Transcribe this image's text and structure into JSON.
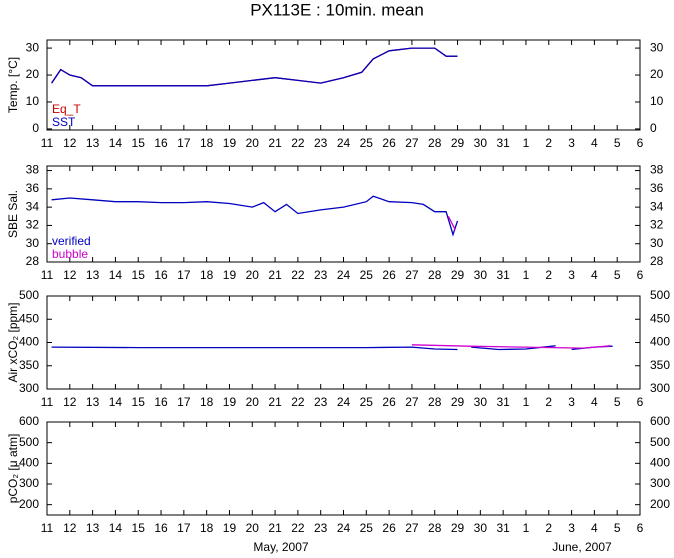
{
  "title": "PX113E : 10min. mean",
  "annotations": [
    "May, 2007",
    "June, 2007"
  ],
  "chart_data": [
    {
      "type": "line",
      "ylabel": "Temp. [°C]",
      "xlim": [
        11,
        37
      ],
      "ylim": [
        -0.4,
        33
      ],
      "xticks": [
        11,
        12,
        13,
        14,
        15,
        16,
        17,
        18,
        19,
        20,
        21,
        22,
        23,
        24,
        25,
        26,
        27,
        28,
        29,
        30,
        31,
        {
          "value": 32,
          "label": "1"
        },
        {
          "value": 33,
          "label": "2"
        },
        {
          "value": 34,
          "label": "3"
        },
        {
          "value": 35,
          "label": "4"
        },
        {
          "value": 36,
          "label": "5"
        },
        {
          "value": 37,
          "label": "6"
        }
      ],
      "yticks": [
        0,
        10,
        20,
        30
      ],
      "series": [
        {
          "name": "Eq_T",
          "color": "#cc0000",
          "x": [
            11.2,
            11.6,
            12,
            12.5,
            13,
            14,
            15,
            16,
            17,
            18,
            19,
            20,
            21,
            22,
            23,
            24,
            24.8,
            25.3,
            26,
            27,
            28,
            28.5,
            29
          ],
          "values": [
            17,
            22,
            20,
            19,
            16,
            16,
            16,
            16,
            16,
            16,
            17,
            18,
            19,
            18,
            17,
            19,
            21,
            26,
            29,
            30,
            30,
            27,
            27
          ]
        },
        {
          "name": "SST",
          "color": "#0000c0",
          "x": [
            11.2,
            11.6,
            12,
            12.5,
            13,
            14,
            15,
            16,
            17,
            18,
            19,
            20,
            21,
            22,
            23,
            24,
            24.8,
            25.3,
            26,
            27,
            28,
            28.5,
            29
          ],
          "values": [
            17,
            22,
            20,
            19,
            16,
            16,
            16,
            16,
            16,
            16,
            17,
            18,
            19,
            18,
            17,
            19,
            21,
            26,
            29,
            30,
            30,
            27,
            27
          ]
        }
      ]
    },
    {
      "type": "line",
      "ylabel": "SBE Sal.",
      "xlim": [
        11,
        37
      ],
      "ylim": [
        28,
        38.5
      ],
      "xticks": [
        11,
        12,
        13,
        14,
        15,
        16,
        17,
        18,
        19,
        20,
        21,
        22,
        23,
        24,
        25,
        26,
        27,
        28,
        29,
        30,
        31,
        {
          "value": 32,
          "label": "1"
        },
        {
          "value": 33,
          "label": "2"
        },
        {
          "value": 34,
          "label": "3"
        },
        {
          "value": 35,
          "label": "4"
        },
        {
          "value": 36,
          "label": "5"
        },
        {
          "value": 37,
          "label": "6"
        }
      ],
      "yticks": [
        28,
        30,
        32,
        34,
        36,
        38
      ],
      "series": [
        {
          "name": "verified",
          "color": "#0000c0",
          "x": [
            11.2,
            12,
            13,
            14,
            15,
            16,
            17,
            18,
            19,
            20,
            20.5,
            21,
            21.5,
            22,
            23,
            24,
            25,
            25.3,
            26,
            27,
            27.5,
            28,
            28.5,
            28.8,
            29
          ],
          "values": [
            34.8,
            35,
            34.8,
            34.6,
            34.6,
            34.5,
            34.5,
            34.6,
            34.4,
            34,
            34.5,
            33.5,
            34.3,
            33.3,
            33.7,
            34,
            34.6,
            35.2,
            34.6,
            34.5,
            34.3,
            33.5,
            33.5,
            31,
            32.5
          ]
        },
        {
          "name": "bubble",
          "color": "#d000d0",
          "x": [
            28.6,
            28.9
          ],
          "values": [
            33,
            31.5
          ]
        }
      ]
    },
    {
      "type": "line",
      "ylabel": "Air xCO₂ [ppm]",
      "xlim": [
        11,
        37
      ],
      "ylim": [
        300,
        500
      ],
      "xticks": [
        11,
        12,
        13,
        14,
        15,
        16,
        17,
        18,
        19,
        20,
        21,
        22,
        23,
        24,
        25,
        26,
        27,
        28,
        29,
        30,
        31,
        {
          "value": 32,
          "label": "1"
        },
        {
          "value": 33,
          "label": "2"
        },
        {
          "value": 34,
          "label": "3"
        },
        {
          "value": 35,
          "label": "4"
        },
        {
          "value": 36,
          "label": "5"
        },
        {
          "value": 37,
          "label": "6"
        }
      ],
      "yticks": [
        300,
        350,
        400,
        450,
        500
      ],
      "series": [
        {
          "name": "verified",
          "color": "#0000c0",
          "x": [
            11.2,
            15,
            20,
            25,
            27,
            28,
            29,
            29.3,
            29.6,
            30.8,
            32,
            33.3,
            33.6,
            34,
            35,
            35.8
          ],
          "values": [
            390,
            389,
            389,
            389,
            390,
            386,
            385,
            null,
            390,
            385,
            386,
            393,
            null,
            385,
            390,
            392
          ]
        },
        {
          "name": "bubble",
          "color": "#d000d0",
          "x": [
            27,
            29.5,
            34.5,
            35.7
          ],
          "values": [
            395,
            392,
            388,
            393
          ]
        }
      ]
    },
    {
      "type": "line",
      "ylabel": "pCO₂ [μ atm]",
      "xlim": [
        11,
        37
      ],
      "ylim": [
        150,
        600
      ],
      "xticks": [
        11,
        12,
        13,
        14,
        15,
        16,
        17,
        18,
        19,
        20,
        21,
        22,
        23,
        24,
        25,
        26,
        27,
        28,
        29,
        30,
        31,
        {
          "value": 32,
          "label": "1"
        },
        {
          "value": 33,
          "label": "2"
        },
        {
          "value": 34,
          "label": "3"
        },
        {
          "value": 35,
          "label": "4"
        },
        {
          "value": 36,
          "label": "5"
        },
        {
          "value": 37,
          "label": "6"
        }
      ],
      "yticks": [
        200,
        300,
        400,
        500,
        600
      ],
      "series": []
    }
  ]
}
